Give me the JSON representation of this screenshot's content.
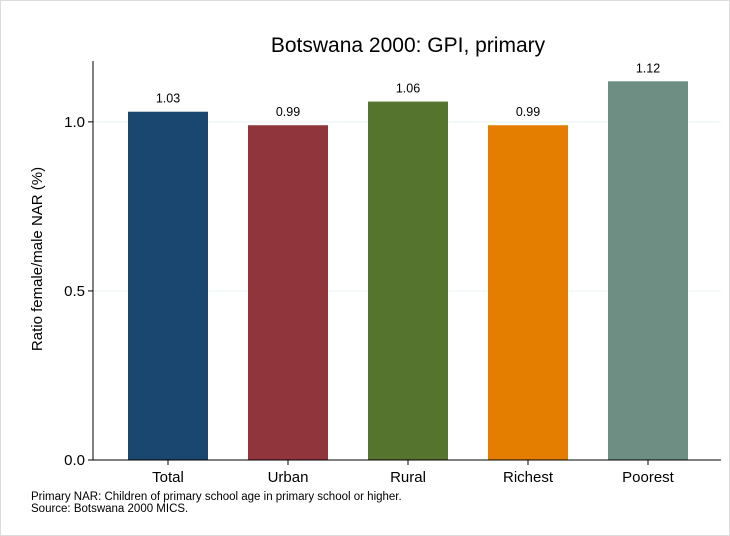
{
  "chart_data": {
    "type": "bar",
    "title": "Botswana 2000: GPI, primary",
    "ylabel": "Ratio female/male NAR (%)",
    "xlabel": "",
    "categories": [
      "Total",
      "Urban",
      "Rural",
      "Richest",
      "Poorest"
    ],
    "values": [
      1.03,
      0.99,
      1.06,
      0.99,
      1.12
    ],
    "value_labels": [
      "1.03",
      "0.99",
      "1.06",
      "0.99",
      "1.12"
    ],
    "bar_colors": [
      "#1a476f",
      "#90353b",
      "#55752f",
      "#e37e00",
      "#6e8e84"
    ],
    "ylim": [
      0,
      1.18
    ],
    "yticks": [
      0,
      0.5,
      1.0
    ],
    "ytick_labels": [
      "0.0",
      "0.5",
      "1.0"
    ],
    "grid": true,
    "legend": "none"
  },
  "notes": {
    "line1": "Primary NAR: Children of primary school age in primary school or higher.",
    "line2": "Source: Botswana 2000 MICS."
  }
}
